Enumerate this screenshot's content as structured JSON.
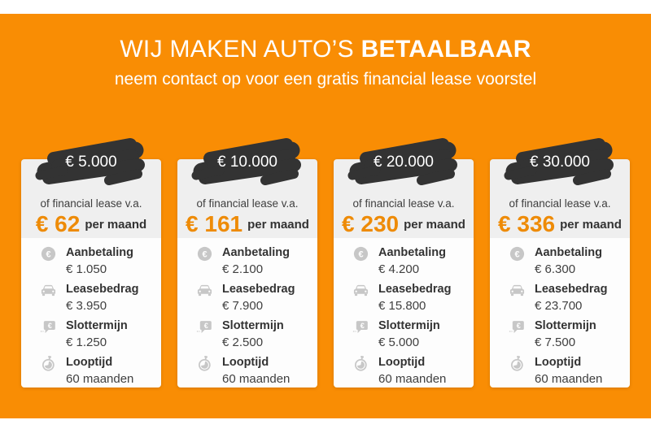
{
  "colors": {
    "background_orange": "#F98D04",
    "price_orange": "#EE8B07",
    "badge_dark": "#333333",
    "card_top_gray": "#EFEFEF",
    "card_list_white": "#FDFDFD",
    "icon_gray": "#C7C7C7",
    "text_dark": "#333333",
    "heading_white": "#FFFFFF"
  },
  "header": {
    "title_regular": "WIJ MAKEN AUTO’S",
    "title_bold": "BETAALBAAR",
    "subtitle": "neem contact op voor een gratis financial lease voorstel"
  },
  "cards": [
    {
      "badge_amount": "€ 5.000",
      "lease_prefix": "of financial lease v.a.",
      "monthly_price": "€ 62",
      "monthly_suffix": "per maand",
      "details": [
        {
          "icon": "euro-coin-icon",
          "label": "Aanbetaling",
          "value": "€ 1.050"
        },
        {
          "icon": "car-icon",
          "label": "Leasebedrag",
          "value": "€ 3.950"
        },
        {
          "icon": "price-bubble-icon",
          "label": "Slottermijn",
          "value": "€ 1.250"
        },
        {
          "icon": "stopwatch-icon",
          "label": "Looptijd",
          "value": "60 maanden"
        }
      ]
    },
    {
      "badge_amount": "€ 10.000",
      "lease_prefix": "of financial lease v.a.",
      "monthly_price": "€ 161",
      "monthly_suffix": "per maand",
      "details": [
        {
          "icon": "euro-coin-icon",
          "label": "Aanbetaling",
          "value": "€ 2.100"
        },
        {
          "icon": "car-icon",
          "label": "Leasebedrag",
          "value": "€ 7.900"
        },
        {
          "icon": "price-bubble-icon",
          "label": "Slottermijn",
          "value": "€ 2.500"
        },
        {
          "icon": "stopwatch-icon",
          "label": "Looptijd",
          "value": "60 maanden"
        }
      ]
    },
    {
      "badge_amount": "€ 20.000",
      "lease_prefix": "of financial lease v.a.",
      "monthly_price": "€ 230",
      "monthly_suffix": "per maand",
      "details": [
        {
          "icon": "euro-coin-icon",
          "label": "Aanbetaling",
          "value": "€ 4.200"
        },
        {
          "icon": "car-icon",
          "label": "Leasebedrag",
          "value": "€ 15.800"
        },
        {
          "icon": "price-bubble-icon",
          "label": "Slottermijn",
          "value": "€ 5.000"
        },
        {
          "icon": "stopwatch-icon",
          "label": "Looptijd",
          "value": "60 maanden"
        }
      ]
    },
    {
      "badge_amount": "€ 30.000",
      "lease_prefix": "of financial lease v.a.",
      "monthly_price": "€ 336",
      "monthly_suffix": "per maand",
      "details": [
        {
          "icon": "euro-coin-icon",
          "label": "Aanbetaling",
          "value": "€ 6.300"
        },
        {
          "icon": "car-icon",
          "label": "Leasebedrag",
          "value": "€ 23.700"
        },
        {
          "icon": "price-bubble-icon",
          "label": "Slottermijn",
          "value": "€ 7.500"
        },
        {
          "icon": "stopwatch-icon",
          "label": "Looptijd",
          "value": "60 maanden"
        }
      ]
    }
  ]
}
